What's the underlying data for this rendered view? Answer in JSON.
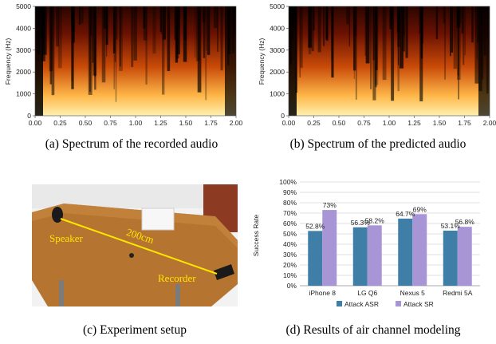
{
  "figure_a": {
    "caption": "(a)  Spectrum of the recorded audio",
    "ylabel": "Frequency (Hz)",
    "yticks": [
      "0",
      "1000",
      "2000",
      "3000",
      "4000",
      "5000"
    ],
    "xticks": [
      "0.00",
      "0.25",
      "0.50",
      "0.75",
      "1.00",
      "1.25",
      "1.50",
      "1.75",
      "2.00"
    ]
  },
  "figure_b": {
    "caption": "(b)  Spectrum of the predicted audio",
    "ylabel": "Frequency (Hz)",
    "yticks": [
      "0",
      "1000",
      "2000",
      "3000",
      "4000",
      "5000"
    ],
    "xticks": [
      "0.00",
      "0.25",
      "0.50",
      "0.75",
      "1.00",
      "1.25",
      "1.50",
      "1.75",
      "2.00"
    ]
  },
  "figure_c": {
    "caption": "(c)  Experiment setup",
    "speaker_label": "Speaker",
    "distance_label": "200cm",
    "recorder_label": "Recorder"
  },
  "figure_d": {
    "caption": "(d)  Results of air channel modeling"
  },
  "colors": {
    "spectro_dark": "#000000",
    "spectro_mid": "#8a1a02",
    "spectro_bright": "#ffb84a",
    "attack_asr": "#3f7ea6",
    "attack_sr": "#a895d6",
    "table_wood": "#b5742f",
    "laser_line": "#ffe600"
  },
  "chart_data": {
    "type": "bar",
    "categories": [
      "iPhone 8",
      "LG Q6",
      "Nexus 5",
      "Redmi 5A"
    ],
    "series": [
      {
        "name": "Attack ASR",
        "values": [
          52.8,
          56.3,
          64.7,
          53.1
        ],
        "labels": [
          "52.8%",
          "56.3%",
          "64.7%",
          "53.1%"
        ]
      },
      {
        "name": "Attack SR",
        "values": [
          73,
          58.2,
          69,
          56.8
        ],
        "labels": [
          "73%",
          "58.2%",
          "69%",
          "56.8%"
        ]
      }
    ],
    "ylabel": "Success Rate",
    "ylim": [
      0,
      100
    ],
    "yticks": [
      "0%",
      "10%",
      "20%",
      "30%",
      "40%",
      "50%",
      "60%",
      "70%",
      "80%",
      "90%",
      "100%"
    ],
    "grid": true,
    "legend": "bottom"
  }
}
